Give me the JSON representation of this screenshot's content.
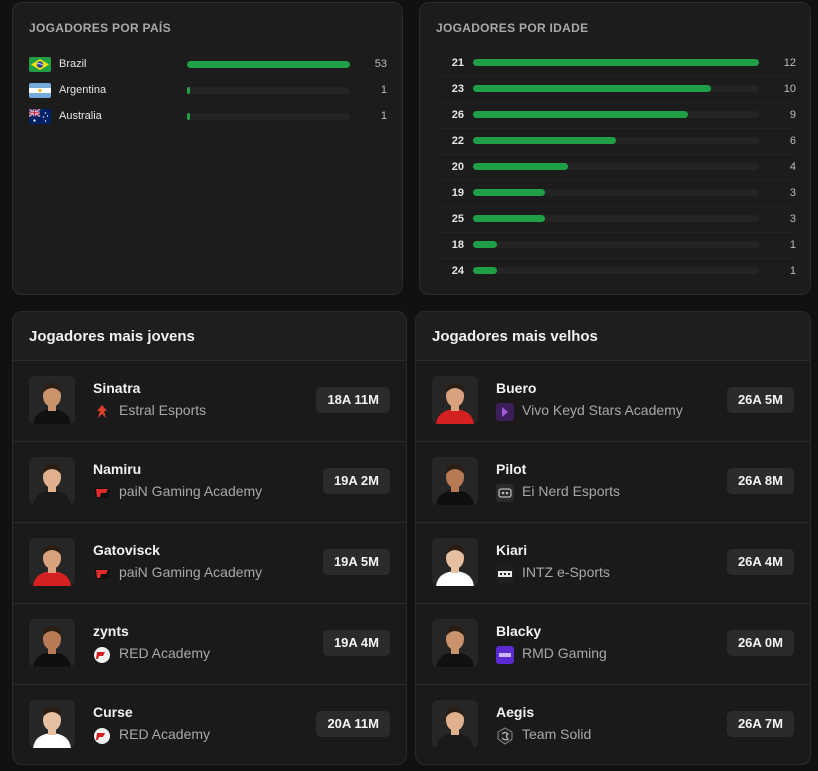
{
  "countries": {
    "title": "JOGADORES POR PAÍS",
    "max": 53,
    "items": [
      {
        "name": "Brazil",
        "count": "53",
        "value": 53,
        "flag": "brazil-flag-icon"
      },
      {
        "name": "Argentina",
        "count": "1",
        "value": 1,
        "flag": "argentina-flag-icon"
      },
      {
        "name": "Australia",
        "count": "1",
        "value": 1,
        "flag": "australia-flag-icon"
      }
    ]
  },
  "ages": {
    "title": "JOGADORES POR IDADE",
    "max": 12,
    "items": [
      {
        "age": "21",
        "count": "12",
        "value": 12
      },
      {
        "age": "23",
        "count": "10",
        "value": 10
      },
      {
        "age": "26",
        "count": "9",
        "value": 9
      },
      {
        "age": "22",
        "count": "6",
        "value": 6
      },
      {
        "age": "20",
        "count": "4",
        "value": 4
      },
      {
        "age": "19",
        "count": "3",
        "value": 3
      },
      {
        "age": "25",
        "count": "3",
        "value": 3
      },
      {
        "age": "18",
        "count": "1",
        "value": 1
      },
      {
        "age": "24",
        "count": "1",
        "value": 1
      }
    ]
  },
  "youngest": {
    "title": "Jogadores mais jovens",
    "players": [
      {
        "name": "Sinatra",
        "team": "Estral Esports",
        "age": "18A 11M",
        "team_icon": "estral-esports-logo-icon"
      },
      {
        "name": "Namiru",
        "team": "paiN Gaming Academy",
        "age": "19A 2M",
        "team_icon": "pain-gaming-logo-icon"
      },
      {
        "name": "Gatovisck",
        "team": "paiN Gaming Academy",
        "age": "19A 5M",
        "team_icon": "pain-gaming-logo-icon"
      },
      {
        "name": "zynts",
        "team": "RED Academy",
        "age": "19A 4M",
        "team_icon": "red-academy-logo-icon"
      },
      {
        "name": "Curse",
        "team": "RED Academy",
        "age": "20A 11M",
        "team_icon": "red-academy-logo-icon"
      }
    ]
  },
  "oldest": {
    "title": "Jogadores mais velhos",
    "players": [
      {
        "name": "Buero",
        "team": "Vivo Keyd Stars Academy",
        "age": "26A 5M",
        "team_icon": "vivo-keyd-logo-icon"
      },
      {
        "name": "Pilot",
        "team": "Ei Nerd Esports",
        "age": "26A 8M",
        "team_icon": "ei-nerd-logo-icon"
      },
      {
        "name": "Kiari",
        "team": "INTZ e-Sports",
        "age": "26A 4M",
        "team_icon": "intz-logo-icon"
      },
      {
        "name": "Blacky",
        "team": "RMD Gaming",
        "age": "26A 0M",
        "team_icon": "rmd-gaming-logo-icon"
      },
      {
        "name": "Aegis",
        "team": "Team Solid",
        "age": "26A 7M",
        "team_icon": "team-solid-logo-icon"
      }
    ]
  },
  "colors": {
    "bar_fill": "#1fa046",
    "bar_track": "#242424",
    "card_bg": "#1c1c1c",
    "page_bg": "#111111"
  }
}
